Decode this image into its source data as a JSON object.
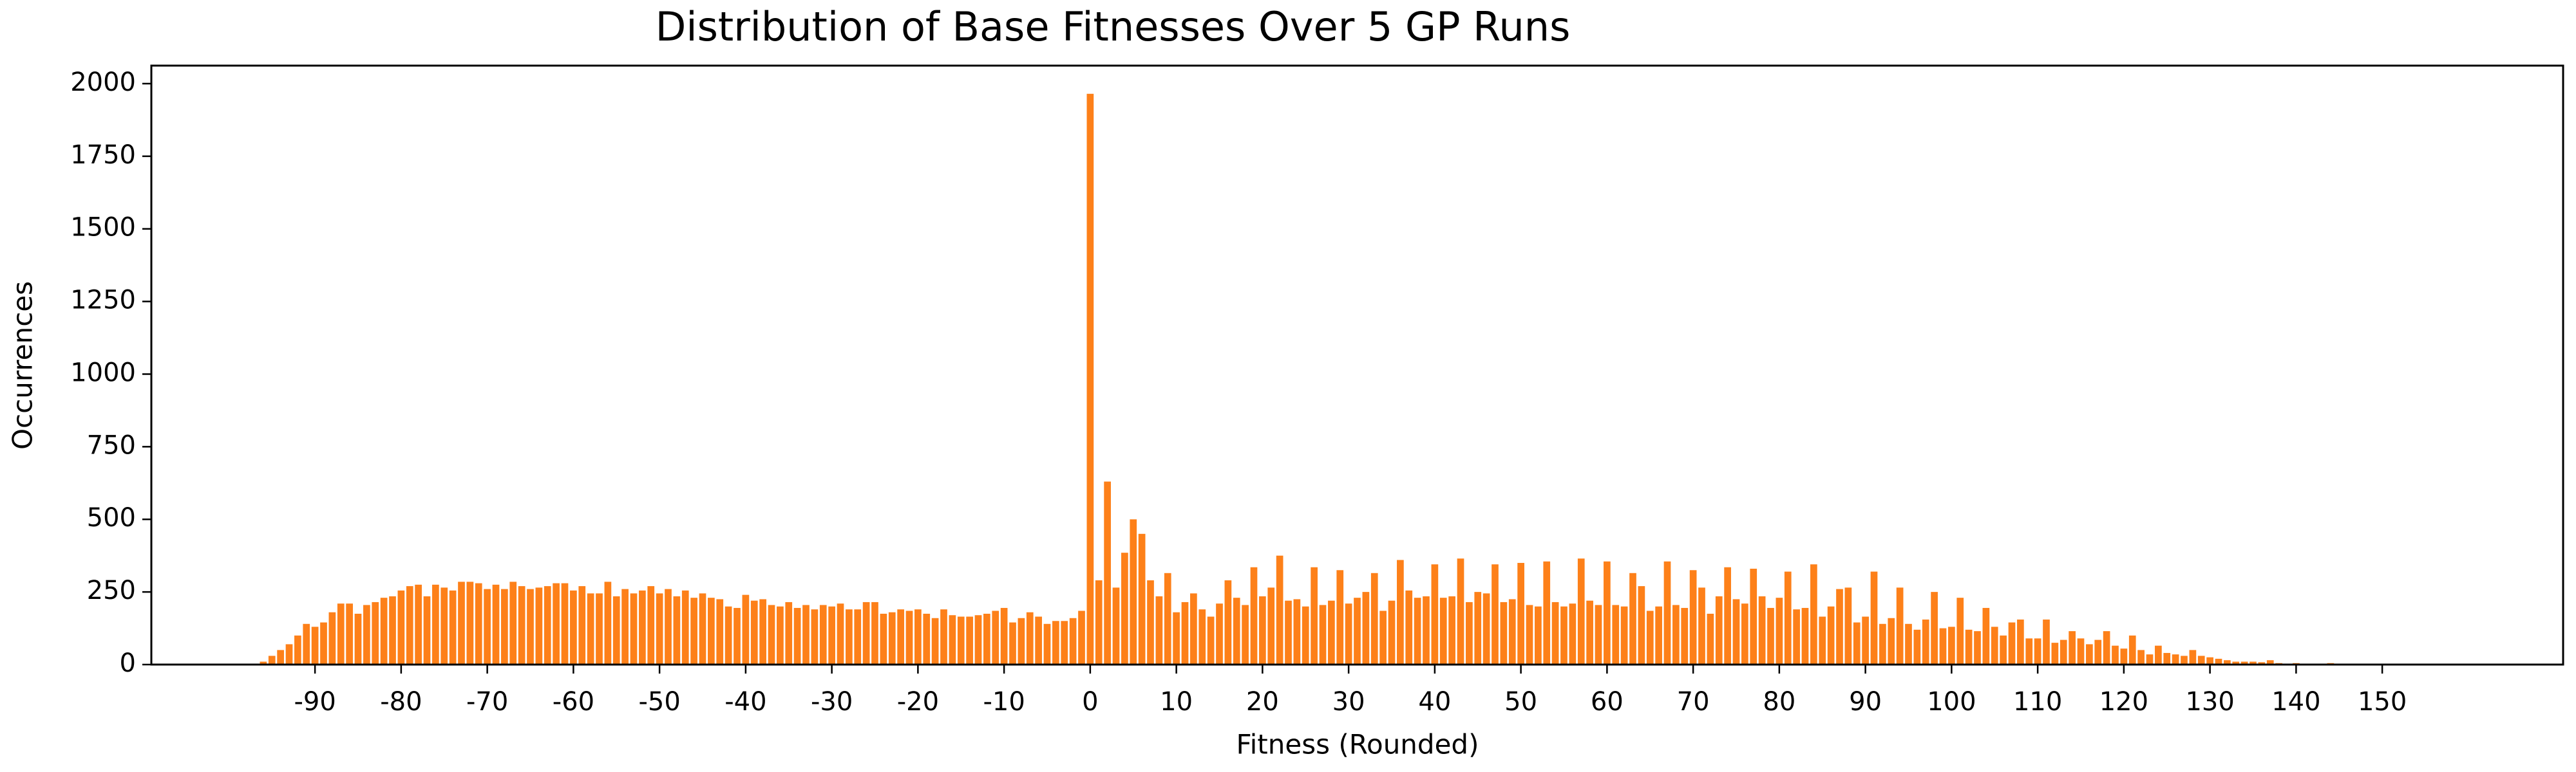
{
  "chart_data": {
    "type": "bar",
    "title": "Distribution of Base Fitnesses Over 5 GP Runs",
    "x_label": "Fitness (Rounded)",
    "y_label": "Occurrences",
    "color": "#fd8019",
    "x": [
      -96,
      -95,
      -94,
      -93,
      -92,
      -91,
      -90,
      -89,
      -88,
      -87,
      -86,
      -85,
      -84,
      -83,
      -82,
      -81,
      -80,
      -79,
      -78,
      -77,
      -76,
      -75,
      -74,
      -73,
      -72,
      -71,
      -70,
      -69,
      -68,
      -67,
      -66,
      -65,
      -64,
      -63,
      -62,
      -61,
      -60,
      -59,
      -58,
      -57,
      -56,
      -55,
      -54,
      -53,
      -52,
      -51,
      -50,
      -49,
      -48,
      -47,
      -46,
      -45,
      -44,
      -43,
      -42,
      -41,
      -40,
      -39,
      -38,
      -37,
      -36,
      -35,
      -34,
      -33,
      -32,
      -31,
      -30,
      -29,
      -28,
      -27,
      -26,
      -25,
      -24,
      -23,
      -22,
      -21,
      -20,
      -19,
      -18,
      -17,
      -16,
      -15,
      -14,
      -13,
      -12,
      -11,
      -10,
      -9,
      -8,
      -7,
      -6,
      -5,
      -4,
      -3,
      -2,
      -1,
      0,
      1,
      2,
      3,
      4,
      5,
      6,
      7,
      8,
      9,
      10,
      11,
      12,
      13,
      14,
      15,
      16,
      17,
      18,
      19,
      20,
      21,
      22,
      23,
      24,
      25,
      26,
      27,
      28,
      29,
      30,
      31,
      32,
      33,
      34,
      35,
      36,
      37,
      38,
      39,
      40,
      41,
      42,
      43,
      44,
      45,
      46,
      47,
      48,
      49,
      50,
      51,
      52,
      53,
      54,
      55,
      56,
      57,
      58,
      59,
      60,
      61,
      62,
      63,
      64,
      65,
      66,
      67,
      68,
      69,
      70,
      71,
      72,
      73,
      74,
      75,
      76,
      77,
      78,
      79,
      80,
      81,
      82,
      83,
      84,
      85,
      86,
      87,
      88,
      89,
      90,
      91,
      92,
      93,
      94,
      95,
      96,
      97,
      98,
      99,
      100,
      101,
      102,
      103,
      104,
      105,
      106,
      107,
      108,
      109,
      110,
      111,
      112,
      113,
      114,
      115,
      116,
      117,
      118,
      119,
      120,
      121,
      122,
      123,
      124,
      125,
      126,
      127,
      128,
      129,
      130,
      131,
      132,
      133,
      134,
      135,
      136,
      137,
      138,
      139,
      140,
      141,
      142,
      143,
      144,
      145,
      146,
      147
    ],
    "values": [
      10,
      30,
      50,
      70,
      100,
      140,
      130,
      145,
      180,
      210,
      210,
      175,
      205,
      215,
      230,
      235,
      255,
      270,
      275,
      235,
      275,
      265,
      255,
      285,
      285,
      280,
      260,
      275,
      260,
      285,
      270,
      260,
      265,
      270,
      280,
      280,
      255,
      270,
      245,
      245,
      285,
      235,
      260,
      245,
      255,
      270,
      245,
      260,
      235,
      255,
      230,
      245,
      230,
      225,
      200,
      195,
      240,
      220,
      225,
      205,
      200,
      215,
      195,
      205,
      190,
      205,
      200,
      210,
      190,
      190,
      215,
      215,
      175,
      180,
      190,
      185,
      190,
      175,
      160,
      190,
      170,
      165,
      165,
      170,
      175,
      185,
      195,
      145,
      160,
      180,
      165,
      140,
      150,
      150,
      160,
      185,
      1965,
      290,
      630,
      265,
      385,
      500,
      450,
      290,
      235,
      315,
      180,
      215,
      245,
      190,
      165,
      210,
      290,
      230,
      205,
      335,
      235,
      265,
      375,
      220,
      225,
      200,
      335,
      205,
      220,
      325,
      210,
      230,
      250,
      315,
      185,
      220,
      360,
      255,
      230,
      235,
      345,
      230,
      235,
      365,
      215,
      250,
      245,
      345,
      215,
      225,
      350,
      205,
      200,
      355,
      215,
      200,
      210,
      365,
      220,
      205,
      355,
      205,
      200,
      315,
      270,
      185,
      200,
      355,
      205,
      195,
      325,
      265,
      175,
      235,
      335,
      225,
      210,
      330,
      235,
      195,
      230,
      320,
      190,
      195,
      345,
      165,
      200,
      260,
      265,
      145,
      165,
      320,
      140,
      160,
      265,
      140,
      120,
      155,
      250,
      125,
      130,
      230,
      120,
      115,
      195,
      130,
      100,
      145,
      155,
      90,
      90,
      155,
      75,
      85,
      115,
      90,
      70,
      85,
      115,
      65,
      55,
      100,
      50,
      35,
      65,
      40,
      35,
      30,
      50,
      30,
      25,
      20,
      15,
      10,
      10,
      10,
      8,
      15,
      5,
      3,
      5,
      3,
      2,
      2,
      5,
      2,
      1,
      1
    ],
    "xlim": [
      -109,
      171
    ],
    "ylim": [
      0,
      2062
    ],
    "xticks": [
      -90,
      -80,
      -70,
      -60,
      -50,
      -40,
      -30,
      -20,
      -10,
      0,
      10,
      20,
      30,
      40,
      50,
      60,
      70,
      80,
      90,
      100,
      110,
      120,
      130,
      140,
      150
    ],
    "yticks": [
      0,
      250,
      500,
      750,
      1000,
      1250,
      1500,
      1750,
      2000
    ]
  }
}
